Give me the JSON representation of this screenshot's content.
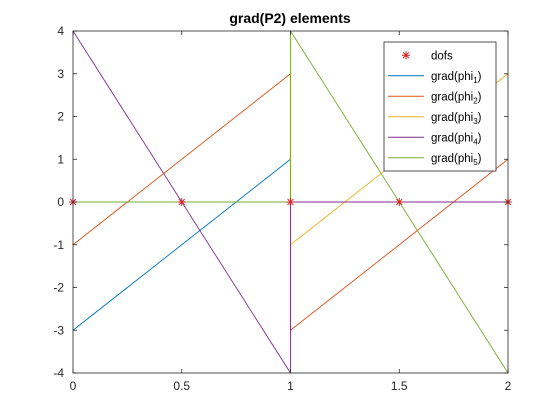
{
  "chart_data": {
    "type": "line",
    "title": "grad(P2) elements",
    "xlabel": "",
    "ylabel": "",
    "xlim": [
      0,
      2
    ],
    "ylim": [
      -4,
      4
    ],
    "xticks": [
      0,
      0.5,
      1,
      1.5,
      2
    ],
    "xtick_labels": [
      "0",
      "0.5",
      "1",
      "1.5",
      "2"
    ],
    "yticks": [
      -4,
      -3,
      -2,
      -1,
      0,
      1,
      2,
      3,
      4
    ],
    "ytick_labels": [
      "-4",
      "-3",
      "-2",
      "-1",
      "0",
      "1",
      "2",
      "3",
      "4"
    ],
    "grid": false,
    "legend_position": "top-right",
    "dofs": {
      "name": "dofs",
      "marker": "*",
      "color": "#d62728",
      "x": [
        0,
        0.5,
        1,
        1.5,
        2
      ],
      "y": [
        0,
        0,
        0,
        0,
        0
      ]
    },
    "series": [
      {
        "name": "grad(phi1)",
        "legend_base": "grad(phi",
        "legend_sub": "1",
        "legend_close": ")",
        "color": "#0072bd",
        "segments": [
          {
            "x": [
              0,
              1
            ],
            "y": [
              -3,
              1
            ]
          },
          {
            "x": [
              1,
              1
            ],
            "y": [
              1,
              0
            ]
          },
          {
            "x": [
              1,
              2
            ],
            "y": [
              0,
              0
            ]
          }
        ]
      },
      {
        "name": "grad(phi2)",
        "legend_base": "grad(phi",
        "legend_sub": "2",
        "legend_close": ")",
        "color": "#d95319",
        "segments": [
          {
            "x": [
              0,
              1
            ],
            "y": [
              -1,
              3
            ]
          },
          {
            "x": [
              1,
              1
            ],
            "y": [
              3,
              -3
            ]
          },
          {
            "x": [
              1,
              2
            ],
            "y": [
              -3,
              1
            ]
          }
        ]
      },
      {
        "name": "grad(phi3)",
        "legend_base": "grad(phi",
        "legend_sub": "3",
        "legend_close": ")",
        "color": "#edb120",
        "segments": [
          {
            "x": [
              0,
              1
            ],
            "y": [
              0,
              0
            ]
          },
          {
            "x": [
              1,
              1
            ],
            "y": [
              0,
              -1
            ]
          },
          {
            "x": [
              1,
              2
            ],
            "y": [
              -1,
              3
            ]
          }
        ]
      },
      {
        "name": "grad(phi4)",
        "legend_base": "grad(phi",
        "legend_sub": "4",
        "legend_close": ")",
        "color": "#7e2f8e",
        "segments": [
          {
            "x": [
              0,
              1
            ],
            "y": [
              4,
              -4
            ]
          },
          {
            "x": [
              1,
              1
            ],
            "y": [
              -4,
              0
            ]
          },
          {
            "x": [
              1,
              2
            ],
            "y": [
              0,
              0
            ]
          }
        ]
      },
      {
        "name": "grad(phi5)",
        "legend_base": "grad(phi",
        "legend_sub": "5",
        "legend_close": ")",
        "color": "#77ac30",
        "segments": [
          {
            "x": [
              0,
              1
            ],
            "y": [
              0,
              0
            ]
          },
          {
            "x": [
              1,
              1
            ],
            "y": [
              0,
              4
            ]
          },
          {
            "x": [
              1,
              2
            ],
            "y": [
              4,
              -4
            ]
          }
        ]
      }
    ]
  }
}
